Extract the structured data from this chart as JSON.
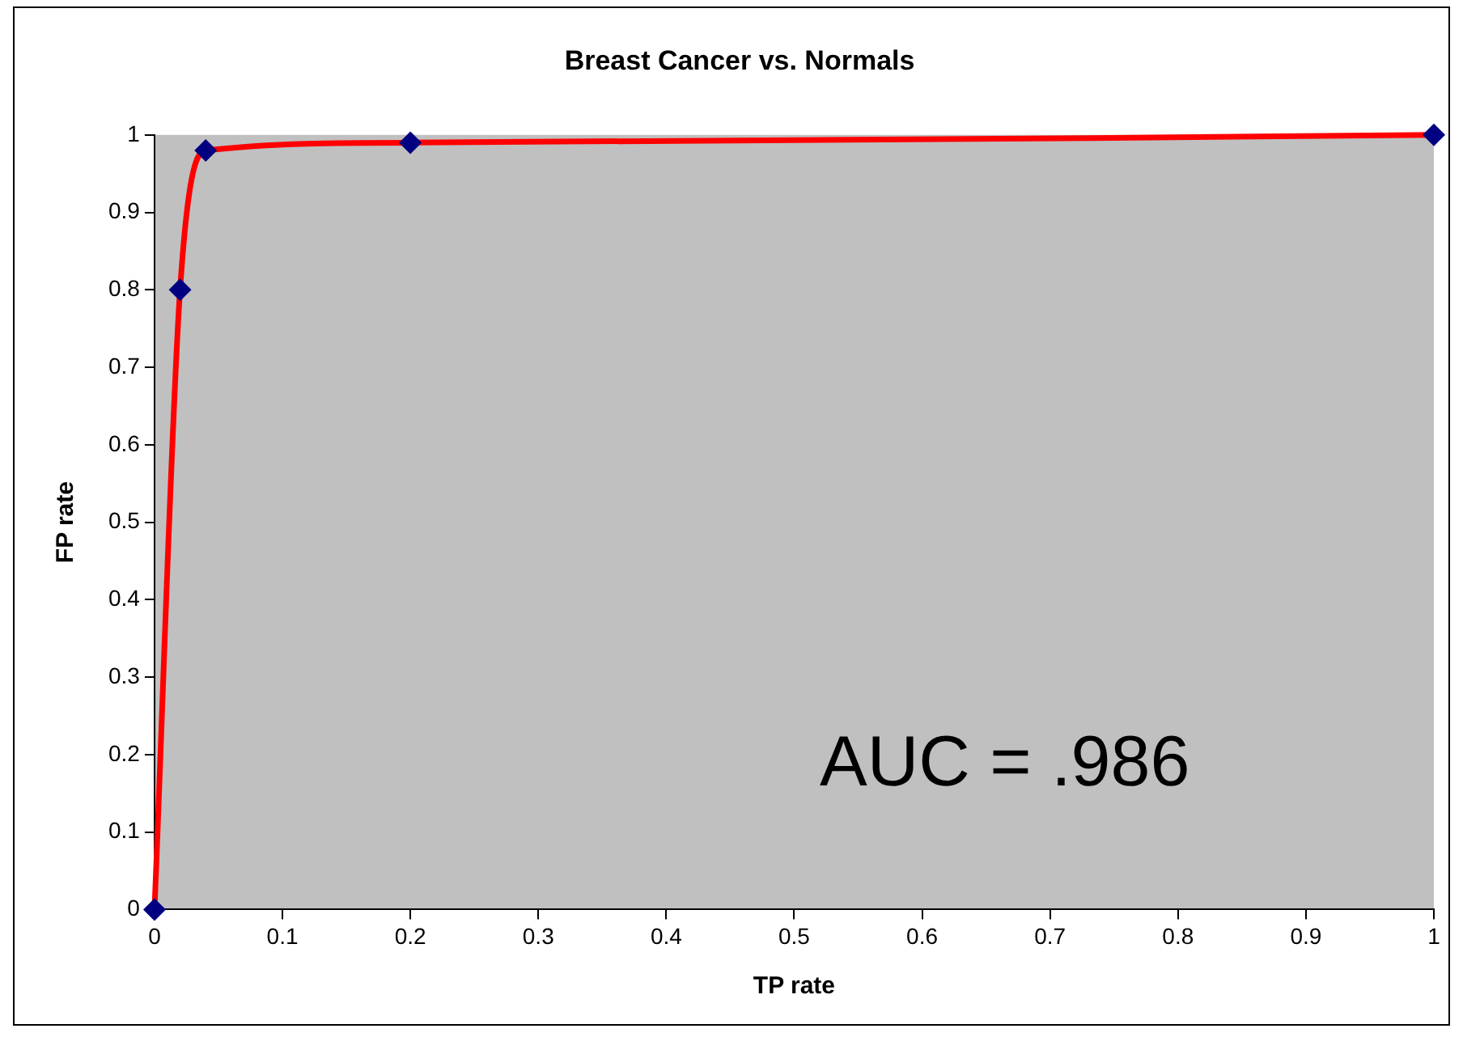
{
  "chart_data": {
    "type": "line",
    "title": "Breast Cancer vs. Normals",
    "xlabel": "TP rate",
    "ylabel": "FP rate",
    "x": [
      0,
      0.02,
      0.04,
      0.2,
      1
    ],
    "series": [
      {
        "color": "#ff0000",
        "marker": "none",
        "values": [
          0,
          0.8,
          0.98,
          0.99,
          1
        ]
      },
      {
        "type": "scatter",
        "color": "#000080",
        "marker": "diamond",
        "values": [
          0,
          0.8,
          0.98,
          0.99,
          1
        ]
      }
    ],
    "xlim": [
      0,
      1
    ],
    "xticks": [
      0,
      0.1,
      0.2,
      0.3,
      0.4,
      0.5,
      0.6,
      0.7,
      0.8,
      0.9,
      1
    ],
    "ylim": [
      0,
      1
    ],
    "yticks": [
      0,
      0.1,
      0.2,
      0.3,
      0.4,
      0.5,
      0.6,
      0.7,
      0.8,
      0.9,
      1
    ],
    "grid": false,
    "legend": false,
    "annotations": [
      "AUC = .986"
    ]
  }
}
